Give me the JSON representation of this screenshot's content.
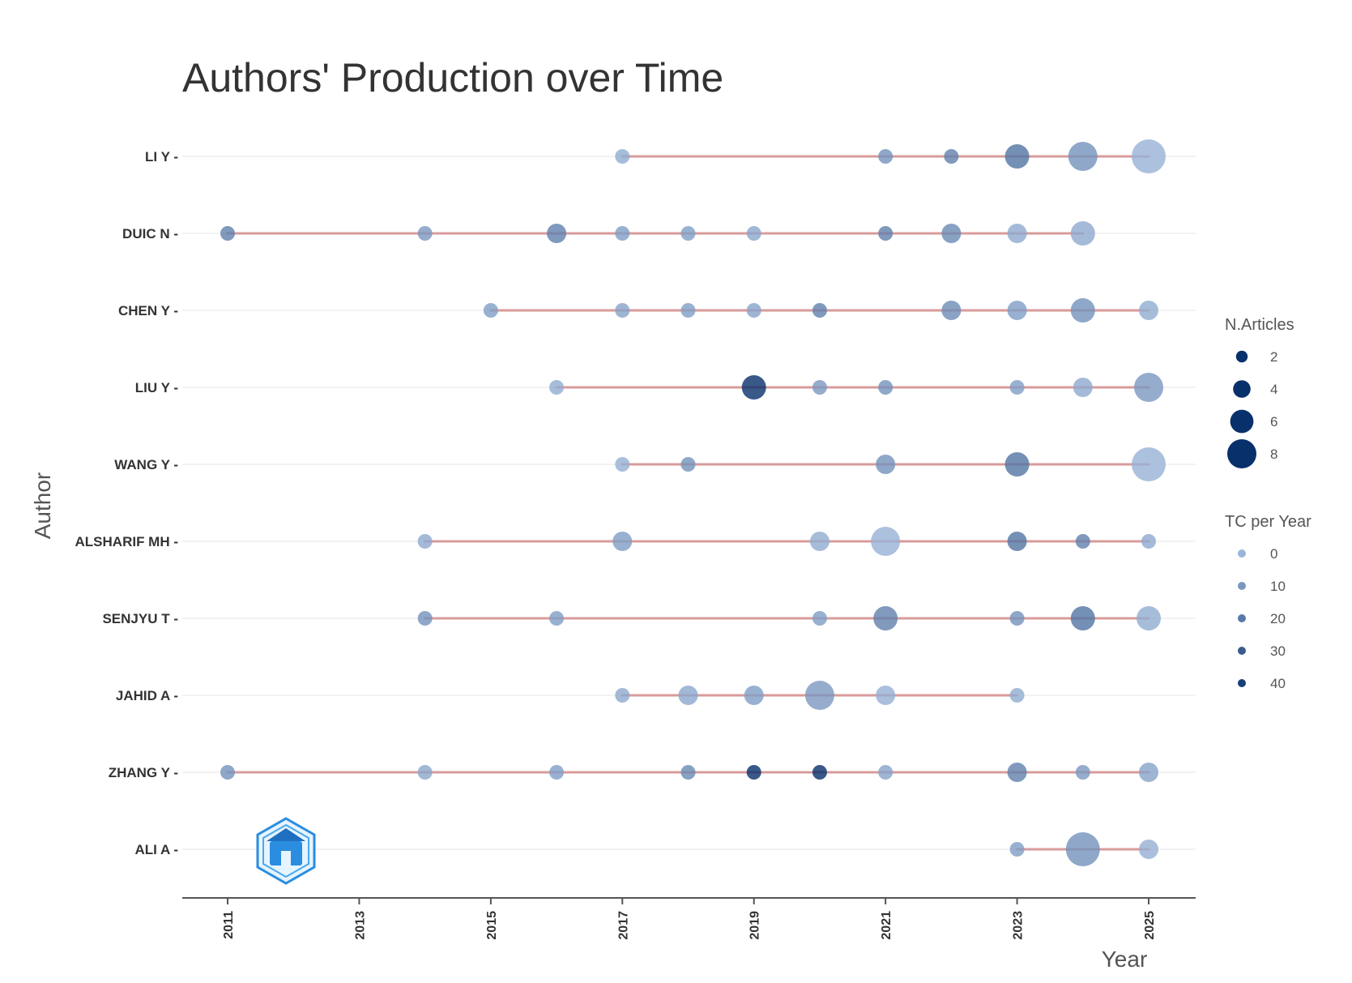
{
  "chart_data": {
    "type": "scatter",
    "title": "Authors' Production over Time",
    "xlabel": "Year",
    "ylabel": "Author",
    "x_ticks": [
      "2011",
      "2013",
      "2015",
      "2017",
      "2019",
      "2021",
      "2023",
      "2025"
    ],
    "xlim": [
      2011,
      2025
    ],
    "grid": "horizontal",
    "authors": [
      {
        "name": "LI Y",
        "points": [
          {
            "year": 2017,
            "articles": 1,
            "tc": 3
          },
          {
            "year": 2021,
            "articles": 1,
            "tc": 12
          },
          {
            "year": 2022,
            "articles": 1,
            "tc": 18
          },
          {
            "year": 2023,
            "articles": 3,
            "tc": 22
          },
          {
            "year": 2024,
            "articles": 4,
            "tc": 12
          },
          {
            "year": 2025,
            "articles": 5,
            "tc": 1
          }
        ]
      },
      {
        "name": "DUIC N",
        "points": [
          {
            "year": 2011,
            "articles": 1,
            "tc": 18
          },
          {
            "year": 2014,
            "articles": 1,
            "tc": 10
          },
          {
            "year": 2016,
            "articles": 2,
            "tc": 18
          },
          {
            "year": 2017,
            "articles": 1,
            "tc": 8
          },
          {
            "year": 2018,
            "articles": 1,
            "tc": 8
          },
          {
            "year": 2019,
            "articles": 1,
            "tc": 5
          },
          {
            "year": 2021,
            "articles": 1,
            "tc": 18
          },
          {
            "year": 2022,
            "articles": 2,
            "tc": 15
          },
          {
            "year": 2023,
            "articles": 2,
            "tc": 4
          },
          {
            "year": 2024,
            "articles": 3,
            "tc": 4
          }
        ]
      },
      {
        "name": "CHEN Y",
        "points": [
          {
            "year": 2015,
            "articles": 1,
            "tc": 8
          },
          {
            "year": 2017,
            "articles": 1,
            "tc": 6
          },
          {
            "year": 2018,
            "articles": 1,
            "tc": 8
          },
          {
            "year": 2019,
            "articles": 1,
            "tc": 6
          },
          {
            "year": 2020,
            "articles": 1,
            "tc": 18
          },
          {
            "year": 2022,
            "articles": 2,
            "tc": 14
          },
          {
            "year": 2023,
            "articles": 2,
            "tc": 8
          },
          {
            "year": 2024,
            "articles": 3,
            "tc": 12
          },
          {
            "year": 2025,
            "articles": 2,
            "tc": 3
          }
        ]
      },
      {
        "name": "LIU Y",
        "points": [
          {
            "year": 2016,
            "articles": 1,
            "tc": 3
          },
          {
            "year": 2019,
            "articles": 3,
            "tc": 45
          },
          {
            "year": 2020,
            "articles": 1,
            "tc": 10
          },
          {
            "year": 2021,
            "articles": 1,
            "tc": 12
          },
          {
            "year": 2023,
            "articles": 1,
            "tc": 8
          },
          {
            "year": 2024,
            "articles": 2,
            "tc": 4
          },
          {
            "year": 2025,
            "articles": 4,
            "tc": 10
          }
        ]
      },
      {
        "name": "WANG Y",
        "points": [
          {
            "year": 2017,
            "articles": 1,
            "tc": 2
          },
          {
            "year": 2018,
            "articles": 1,
            "tc": 12
          },
          {
            "year": 2021,
            "articles": 2,
            "tc": 12
          },
          {
            "year": 2023,
            "articles": 3,
            "tc": 22
          },
          {
            "year": 2025,
            "articles": 5,
            "tc": 1
          }
        ]
      },
      {
        "name": "ALSHARIF MH",
        "points": [
          {
            "year": 2014,
            "articles": 1,
            "tc": 4
          },
          {
            "year": 2017,
            "articles": 2,
            "tc": 8
          },
          {
            "year": 2020,
            "articles": 2,
            "tc": 3
          },
          {
            "year": 2021,
            "articles": 4,
            "tc": 1
          },
          {
            "year": 2023,
            "articles": 2,
            "tc": 22
          },
          {
            "year": 2024,
            "articles": 1,
            "tc": 18
          },
          {
            "year": 2025,
            "articles": 1,
            "tc": 4
          }
        ]
      },
      {
        "name": "SENJYU T",
        "points": [
          {
            "year": 2014,
            "articles": 1,
            "tc": 12
          },
          {
            "year": 2016,
            "articles": 1,
            "tc": 8
          },
          {
            "year": 2020,
            "articles": 1,
            "tc": 8
          },
          {
            "year": 2021,
            "articles": 3,
            "tc": 18
          },
          {
            "year": 2023,
            "articles": 1,
            "tc": 12
          },
          {
            "year": 2024,
            "articles": 3,
            "tc": 22
          },
          {
            "year": 2025,
            "articles": 3,
            "tc": 3
          }
        ]
      },
      {
        "name": "JAHID A",
        "points": [
          {
            "year": 2017,
            "articles": 1,
            "tc": 4
          },
          {
            "year": 2018,
            "articles": 2,
            "tc": 5
          },
          {
            "year": 2019,
            "articles": 2,
            "tc": 8
          },
          {
            "year": 2020,
            "articles": 4,
            "tc": 10
          },
          {
            "year": 2021,
            "articles": 2,
            "tc": 2
          },
          {
            "year": 2023,
            "articles": 1,
            "tc": 3
          }
        ]
      },
      {
        "name": "ZHANG Y",
        "points": [
          {
            "year": 2011,
            "articles": 1,
            "tc": 12
          },
          {
            "year": 2014,
            "articles": 1,
            "tc": 5
          },
          {
            "year": 2016,
            "articles": 1,
            "tc": 8
          },
          {
            "year": 2018,
            "articles": 1,
            "tc": 15
          },
          {
            "year": 2019,
            "articles": 1,
            "tc": 45
          },
          {
            "year": 2020,
            "articles": 1,
            "tc": 45
          },
          {
            "year": 2021,
            "articles": 1,
            "tc": 6
          },
          {
            "year": 2023,
            "articles": 2,
            "tc": 18
          },
          {
            "year": 2024,
            "articles": 1,
            "tc": 10
          },
          {
            "year": 2025,
            "articles": 2,
            "tc": 6
          }
        ]
      },
      {
        "name": "ALI A",
        "points": [
          {
            "year": 2023,
            "articles": 1,
            "tc": 8
          },
          {
            "year": 2024,
            "articles": 5,
            "tc": 12
          },
          {
            "year": 2025,
            "articles": 2,
            "tc": 2
          }
        ]
      }
    ],
    "legend_size": {
      "title": "N.Articles",
      "values": [
        2,
        4,
        6,
        8
      ]
    },
    "legend_color": {
      "title": "TC per Year",
      "values": [
        0,
        10,
        20,
        30,
        40
      ]
    },
    "legend_position": "right",
    "colors": {
      "line": "#d99b9b",
      "point_dark": "#08306b",
      "point_light": "#9ab5d8",
      "grid": "#f2f2f2"
    }
  }
}
